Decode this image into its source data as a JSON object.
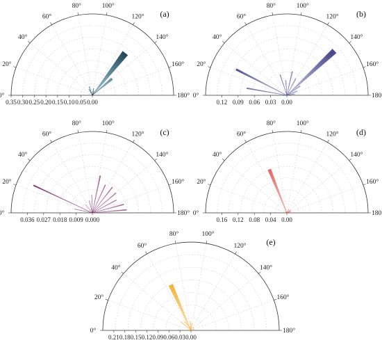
{
  "chart_data": [
    {
      "type": "polar-bar",
      "panel_label": "(a)",
      "theta_ticks": [
        "0°",
        "20°",
        "40°",
        "60°",
        "80°",
        "100°",
        "120°",
        "140°",
        "160°",
        "180°"
      ],
      "r_ticks": [
        "0.35",
        "0.30",
        "0.25",
        "0.20",
        "0.15",
        "0.10",
        "0.05",
        "0.00"
      ],
      "r_max": 0.35,
      "colors": {
        "inner": "#9fd8ea",
        "outer": "#12323f"
      },
      "bars": [
        {
          "theta": 128,
          "r": 0.23,
          "width": 7
        },
        {
          "theta": 140,
          "r": 0.11,
          "width": 5
        },
        {
          "theta": 60,
          "r": 0.03,
          "width": 3
        },
        {
          "theta": 70,
          "r": 0.04,
          "width": 3
        },
        {
          "theta": 100,
          "r": 0.03,
          "width": 3
        },
        {
          "theta": 110,
          "r": 0.02,
          "width": 3
        }
      ]
    },
    {
      "type": "polar-bar",
      "panel_label": "(b)",
      "theta_ticks": [
        "0°",
        "20°",
        "40°",
        "60°",
        "80°",
        "100°",
        "120°",
        "140°",
        "160°",
        "180°"
      ],
      "r_ticks": [
        "0.12",
        "0.09",
        "0.06",
        "0.03",
        "0.00"
      ],
      "r_max": 0.15,
      "colors": {
        "inner": "#d5d3ec",
        "outer": "#4b4a8d"
      },
      "bars": [
        {
          "theta": 137,
          "r": 0.12,
          "width": 5
        },
        {
          "theta": 27,
          "r": 0.105,
          "width": 2
        },
        {
          "theta": 10,
          "r": 0.075,
          "width": 1.5
        },
        {
          "theta": 72,
          "r": 0.04,
          "width": 2
        },
        {
          "theta": 86,
          "r": 0.028,
          "width": 2
        },
        {
          "theta": 103,
          "r": 0.045,
          "width": 2
        },
        {
          "theta": 118,
          "r": 0.035,
          "width": 2
        },
        {
          "theta": 145,
          "r": 0.03,
          "width": 3
        },
        {
          "theta": 158,
          "r": 0.02,
          "width": 3
        },
        {
          "theta": 170,
          "r": 0.015,
          "width": 3
        }
      ]
    },
    {
      "type": "polar-bar",
      "panel_label": "(c)",
      "theta_ticks": [
        "0°",
        "20°",
        "40°",
        "60°",
        "80°",
        "100°",
        "120°",
        "140°",
        "160°",
        "180°"
      ],
      "r_ticks": [
        "0.036",
        "0.027",
        "0.018",
        "0.009",
        "0.000"
      ],
      "r_max": 0.045,
      "colors": {
        "inner": "#f0d7ea",
        "outer": "#7a2f6f"
      },
      "bars": [
        {
          "theta": 25,
          "r": 0.036,
          "width": 1
        },
        {
          "theta": 102,
          "r": 0.021,
          "width": 1.5
        },
        {
          "theta": 115,
          "r": 0.017,
          "width": 1.5
        },
        {
          "theta": 128,
          "r": 0.018,
          "width": 1.5
        },
        {
          "theta": 140,
          "r": 0.017,
          "width": 1.5
        },
        {
          "theta": 152,
          "r": 0.015,
          "width": 1.5
        },
        {
          "theta": 165,
          "r": 0.018,
          "width": 1.5
        },
        {
          "theta": 175,
          "r": 0.019,
          "width": 1.5
        },
        {
          "theta": 12,
          "r": 0.01,
          "width": 1
        },
        {
          "theta": 50,
          "r": 0.006,
          "width": 1
        },
        {
          "theta": 75,
          "r": 0.007,
          "width": 1
        },
        {
          "theta": 88,
          "r": 0.01,
          "width": 1
        }
      ]
    },
    {
      "type": "polar-bar",
      "panel_label": "(d)",
      "theta_ticks": [
        "0°",
        "20°",
        "40°",
        "60°",
        "80°",
        "100°",
        "120°",
        "140°",
        "160°",
        "180°"
      ],
      "r_ticks": [
        "0.16",
        "0.12",
        "0.08",
        "0.04",
        "0.00"
      ],
      "r_max": 0.2,
      "colors": {
        "inner": "#f6c6c6",
        "outer": "#e34a4a"
      },
      "bars": [
        {
          "theta": 68,
          "r": 0.115,
          "width": 4
        },
        {
          "theta": 120,
          "r": 0.01,
          "width": 4
        },
        {
          "theta": 145,
          "r": 0.012,
          "width": 6
        },
        {
          "theta": 160,
          "r": 0.01,
          "width": 6
        },
        {
          "theta": 40,
          "r": 0.006,
          "width": 4
        }
      ]
    },
    {
      "type": "polar-bar",
      "panel_label": "(e)",
      "theta_ticks": [
        "0°",
        "20°",
        "40°",
        "60°",
        "80°",
        "100°",
        "120°",
        "140°",
        "160°",
        "180°"
      ],
      "r_ticks": [
        "0.21",
        "0.18",
        "0.15",
        "0.12",
        "0.09",
        "0.06",
        "0.03",
        "0.00"
      ],
      "r_max": 0.24,
      "colors": {
        "inner": "#fde7b8",
        "outer": "#f0a11a"
      },
      "bars": [
        {
          "theta": 66,
          "r": 0.135,
          "width": 5
        },
        {
          "theta": 55,
          "r": 0.03,
          "width": 3
        },
        {
          "theta": 40,
          "r": 0.035,
          "width": 3
        },
        {
          "theta": 85,
          "r": 0.025,
          "width": 3
        },
        {
          "theta": 98,
          "r": 0.02,
          "width": 3
        },
        {
          "theta": 130,
          "r": 0.012,
          "width": 4
        },
        {
          "theta": 160,
          "r": 0.008,
          "width": 5
        }
      ]
    }
  ]
}
